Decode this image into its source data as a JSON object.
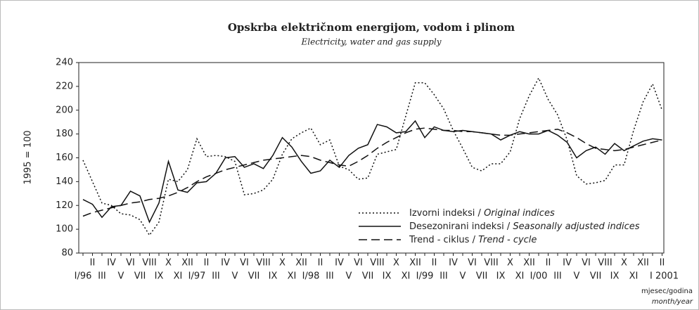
{
  "chart_data": {
    "type": "line",
    "title": "Opskrba električnom energijom, vodom i plinom",
    "subtitle": "Electricity, water and gas supply",
    "y_label": "1995 = 100",
    "x_label": "mjesec/godina",
    "x_label_en": "month/year",
    "categories": [
      "I/96",
      "II",
      "III",
      "IV",
      "V",
      "VI",
      "VII",
      "VIII",
      "IX",
      "X",
      "XI",
      "XII",
      "I/97",
      "II",
      "III",
      "IV",
      "V",
      "VI",
      "VII",
      "VIII",
      "IX",
      "X",
      "XI",
      "XII",
      "I/98",
      "II",
      "III",
      "IV",
      "V",
      "VI",
      "VII",
      "VIII",
      "IX",
      "X",
      "XI",
      "XII",
      "I/99",
      "II",
      "III",
      "IV",
      "V",
      "VI",
      "VII",
      "VIII",
      "IX",
      "X",
      "XI",
      "XII",
      "I/00",
      "II",
      "III",
      "IV",
      "V",
      "VI",
      "VII",
      "VIII",
      "IX",
      "X",
      "XI",
      "XII",
      "I 2001",
      "II"
    ],
    "series": [
      {
        "name": "Izvorni indeksi / Original indices",
        "color": "#111",
        "dash": "dotted",
        "values": [
          158,
          140,
          122,
          120,
          113,
          112,
          108,
          95,
          106,
          142,
          140,
          150,
          176,
          161,
          162,
          161,
          157,
          129,
          130,
          133,
          142,
          163,
          176,
          181,
          185,
          171,
          175,
          153,
          150,
          142,
          143,
          163,
          165,
          167,
          195,
          223,
          223,
          213,
          201,
          183,
          168,
          152,
          149,
          155,
          155,
          165,
          193,
          212,
          227,
          209,
          196,
          175,
          145,
          138,
          139,
          141,
          154,
          154,
          183,
          207,
          222,
          200
        ]
      },
      {
        "name": "Desezonirani indeksi / Seasonally adjusted indices",
        "color": "#111",
        "dash": "solid",
        "values": [
          125,
          121,
          110,
          119,
          120,
          132,
          128,
          106,
          122,
          157,
          133,
          131,
          139,
          140,
          147,
          160,
          161,
          152,
          155,
          151,
          162,
          177,
          169,
          157,
          147,
          149,
          158,
          152,
          162,
          168,
          171,
          188,
          186,
          181,
          182,
          191,
          177,
          186,
          183,
          182,
          183,
          182,
          181,
          180,
          175,
          179,
          182,
          180,
          180,
          183,
          179,
          173,
          160,
          166,
          169,
          163,
          172,
          166,
          170,
          174,
          176,
          175
        ]
      },
      {
        "name": "Trend - ciklus / Trend - cycle",
        "color": "#111",
        "dash": "dashed",
        "values": [
          111,
          114,
          116,
          118,
          120,
          122,
          123,
          125,
          126,
          128,
          131,
          135,
          140,
          144,
          147,
          150,
          152,
          154,
          156,
          158,
          159,
          160,
          161,
          162,
          161,
          158,
          156,
          154,
          153,
          157,
          162,
          168,
          173,
          177,
          181,
          184,
          185,
          184,
          183,
          183,
          182,
          182,
          181,
          180,
          179,
          179,
          180,
          181,
          182,
          183,
          184,
          181,
          177,
          172,
          168,
          167,
          166,
          167,
          169,
          171,
          173,
          175
        ]
      }
    ],
    "ylim": [
      80,
      240
    ],
    "yticks": [
      80,
      100,
      120,
      140,
      160,
      180,
      200,
      220,
      240
    ],
    "grid": false,
    "legend": "lower right"
  }
}
